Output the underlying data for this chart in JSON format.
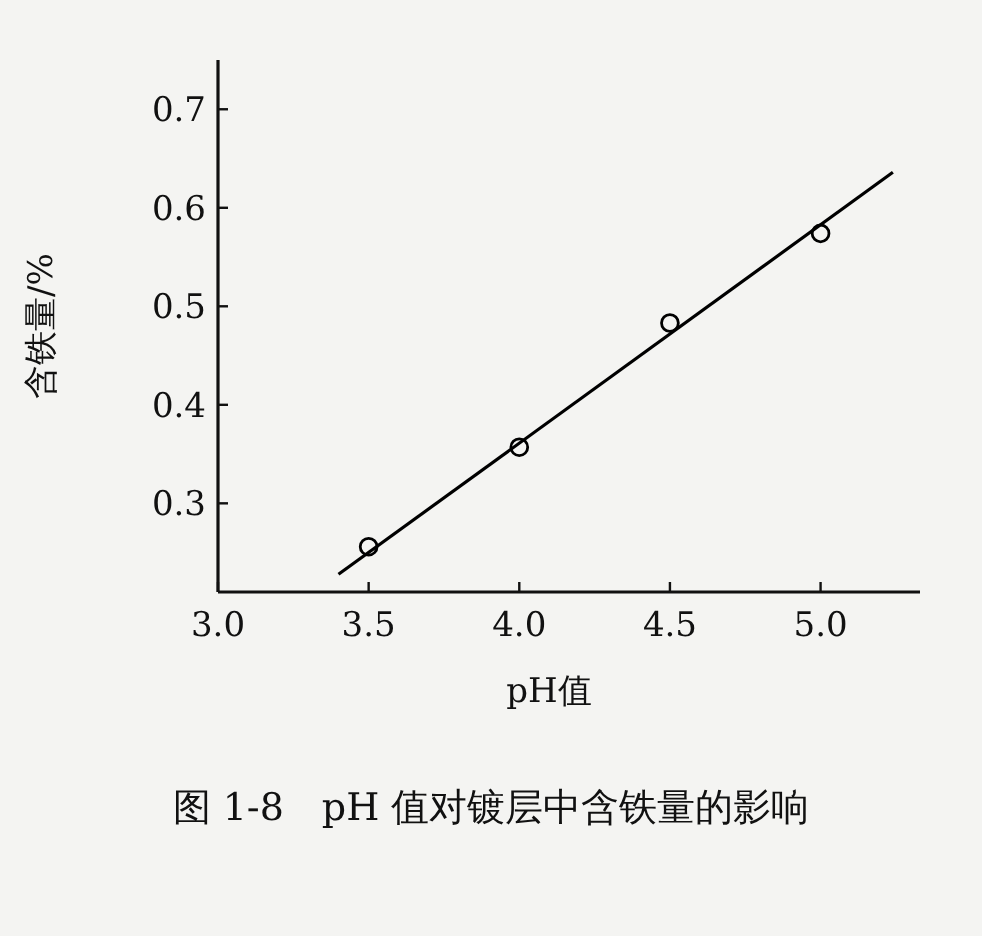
{
  "chart_data": {
    "type": "scatter",
    "title": "图 1-8　pH 值对镀层中含铁量的影响",
    "xlabel": "pH值",
    "ylabel": "含铁量/%",
    "xlim": [
      3.0,
      5.33
    ],
    "ylim": [
      0.21,
      0.75
    ],
    "xticks": [
      {
        "value": 3.0,
        "label": "3.0"
      },
      {
        "value": 3.5,
        "label": "3.5"
      },
      {
        "value": 4.0,
        "label": "4.0"
      },
      {
        "value": 4.5,
        "label": "4.5"
      },
      {
        "value": 5.0,
        "label": "5.0"
      }
    ],
    "yticks": [
      0.3,
      0.4,
      0.5,
      0.6,
      0.7
    ],
    "series": [
      {
        "color": "#000000",
        "marker": "circle",
        "x": [
          3.5,
          4.0,
          4.5,
          5.0
        ],
        "values": [
          0.256,
          0.357,
          0.483,
          0.574
        ]
      },
      {
        "type": "line",
        "color": "#000000",
        "marker": "none",
        "line_style": "solid",
        "x": [
          3.4,
          5.24
        ],
        "values": [
          0.228,
          0.636
        ]
      }
    ]
  }
}
